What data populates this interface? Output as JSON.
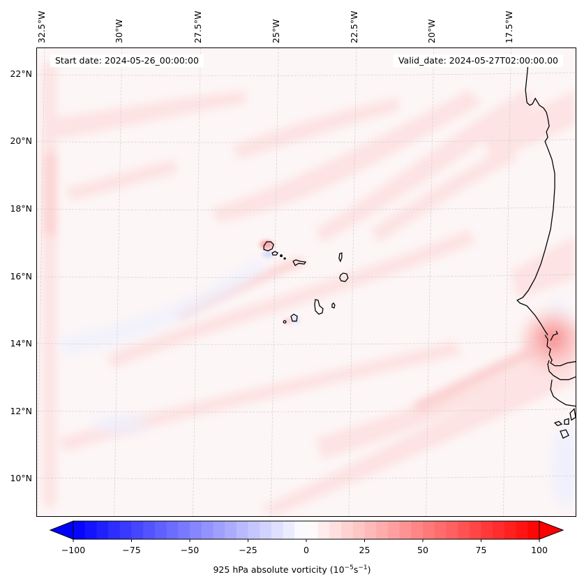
{
  "chart_data": {
    "type": "heatmap",
    "title": "",
    "subtype": "filled contour map",
    "field": "925 hPa absolute vorticity",
    "units": "10^-5 s^-1",
    "colormap": "bwr",
    "vmin": -100,
    "vmax": 100,
    "levels_step": 5,
    "extend": "both",
    "colorbar": {
      "orientation": "horizontal",
      "placement": "bottom",
      "ticks": [
        -100,
        -75,
        -50,
        -25,
        0,
        25,
        50,
        75,
        100
      ],
      "tick_labels": [
        "−100",
        "−75",
        "−50",
        "−25",
        "0",
        "25",
        "50",
        "75",
        "100"
      ],
      "label_prefix": "925 hPa absolute vorticity (10",
      "label_exp1": "−5",
      "label_mid": "s",
      "label_exp2": "−1",
      "label_suffix": ")"
    },
    "lon_ticks": [
      -32.5,
      -30,
      -27.5,
      -25,
      -22.5,
      -20,
      -17.5
    ],
    "lon_tick_labels": [
      "32.5°W",
      "30°W",
      "27.5°W",
      "25°W",
      "22.5°W",
      "20°W",
      "17.5°W"
    ],
    "lat_ticks": [
      22,
      20,
      18,
      16,
      14,
      12,
      10
    ],
    "lat_tick_labels": [
      "22°N",
      "20°N",
      "18°N",
      "16°N",
      "14°N",
      "12°N",
      "10°N"
    ],
    "extent": {
      "lon": [
        -33,
        -15.5
      ],
      "lat": [
        8.9,
        22.8
      ]
    },
    "grid": true,
    "features": {
      "coastlines": true,
      "regions": [
        "Cape Verde Islands",
        "West African coast (Mauritania, Senegal, Gambia, Guinea-Bissau)"
      ]
    },
    "notable_values": [
      {
        "location": "Dakar / Cap-Vert peninsula",
        "approx_lon": -17.2,
        "approx_lat": 14.2,
        "value_approx": 30
      },
      {
        "location": "Santo Antão (NW Cape Verde)",
        "approx_lon": -25.2,
        "approx_lat": 17.0,
        "value_approx": 20
      },
      {
        "location": "lee of Santo Antão",
        "approx_lon": -25.1,
        "approx_lat": 16.7,
        "value_approx": -8
      },
      {
        "location": "background ocean",
        "value_approx": 3
      }
    ]
  },
  "annotations": {
    "start_date": "Start date: 2024-05-26_00:00:00",
    "valid_date": "Valid_date: 2024-05-27T02:00:00.00"
  },
  "colors": {
    "negative_max": "#0000ff",
    "zero": "#ffffff",
    "positive_max": "#ff0000",
    "background_field": "#fdf6f6",
    "coastline": "#000000",
    "gridline": "#c8c8c8"
  }
}
